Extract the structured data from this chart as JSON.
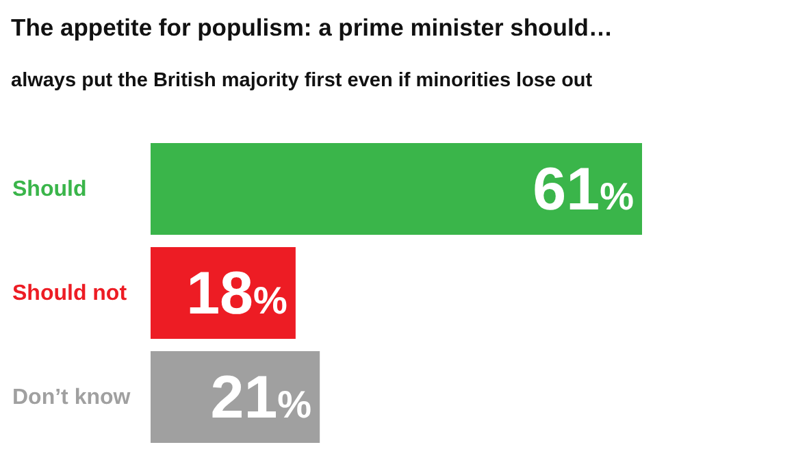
{
  "chart_data": {
    "type": "bar",
    "orientation": "horizontal",
    "title": "The appetite for populism: a prime minister should…",
    "subtitle": "always put the British majority first even if minorities lose out",
    "categories": [
      "Should",
      "Should not",
      "Don’t know"
    ],
    "values": [
      61,
      18,
      21
    ],
    "colors": [
      "#3ab54a",
      "#ed1c24",
      "#a0a0a0"
    ],
    "value_labels": [
      "61%",
      "18%",
      "21%"
    ],
    "tick_labels": "y"
  }
}
